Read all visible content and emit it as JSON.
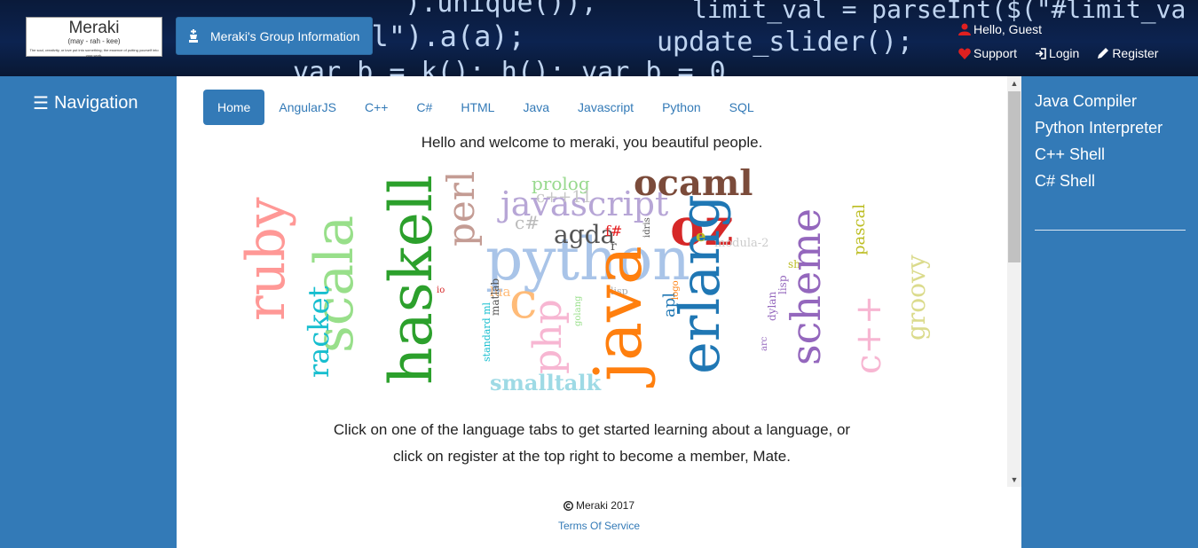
{
  "header": {
    "code_lines": [
      "\"\").unique()),",
      "limit_val = parseInt($(\"#limit_va",
      "val\").a(a);",
      "update_slider();",
      "var b = k();   h();   var b = 0"
    ],
    "logo": {
      "name": "Meraki",
      "pronunciation": "(may - rah - kee)",
      "tagline": "The soul, creativity, or love put into something; the essence of putting yourself into your work."
    },
    "group_button_label": "Meraki's Group Information",
    "user": {
      "greeting": "Hello, Guest",
      "support": "Support",
      "login": "Login",
      "register": "Register"
    }
  },
  "sidebar_left": {
    "toggle_label": "Navigation"
  },
  "main": {
    "tabs": [
      {
        "label": "Home",
        "active": true
      },
      {
        "label": "AngularJS"
      },
      {
        "label": "C++"
      },
      {
        "label": "C#"
      },
      {
        "label": "HTML"
      },
      {
        "label": "Java"
      },
      {
        "label": "Javascript"
      },
      {
        "label": "Python"
      },
      {
        "label": "SQL"
      }
    ],
    "welcome": "Hello and welcome to meraki, you beautiful people.",
    "instruction_line1": "Click on one of the language tabs to get started learning about a language, or",
    "instruction_line2": "click on register at the top right to become a member, Mate.",
    "word_cloud": {
      "words": [
        "python",
        "java",
        "haskell",
        "scala",
        "ruby",
        "javascript",
        "ocaml",
        "oz",
        "erlang",
        "scheme",
        "c++",
        "php",
        "perl",
        "c",
        "smalltalk",
        "racket",
        "groovy",
        "agda",
        "prolog",
        "c#",
        "c++11",
        "pascal",
        "lua",
        "f#",
        "r",
        "e",
        "sh",
        "io",
        "matlab",
        "standard ml",
        "golang",
        "apl",
        "logo",
        "zkl",
        "dylan",
        "lisp",
        "arc",
        "modula-2",
        "idris",
        "smalltalk"
      ]
    }
  },
  "footer": {
    "copyright": "Meraki 2017",
    "terms": "Terms Of Service"
  },
  "sidebar_right": {
    "tools": [
      "Java Compiler",
      "Python Interpreter",
      "C++ Shell",
      "C# Shell"
    ]
  },
  "colors": {
    "primary": "#337ab7",
    "header_bg": "#0c2350",
    "heart": "#e02020"
  }
}
